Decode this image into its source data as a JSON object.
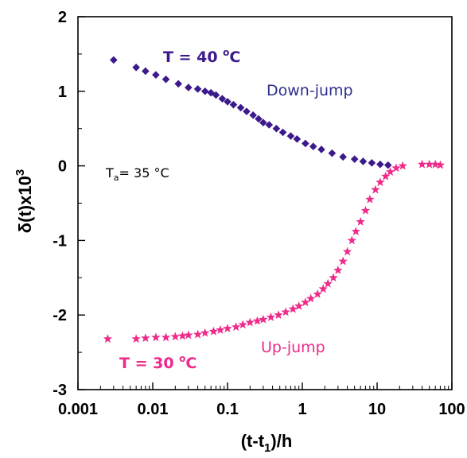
{
  "chart_data": {
    "type": "scatter",
    "x_scale": "log",
    "xlim": [
      0.001,
      100
    ],
    "ylim": [
      -3,
      2
    ],
    "x_ticks": [
      "0.001",
      "0.01",
      "0.1",
      "1",
      "10",
      "100"
    ],
    "y_ticks": [
      "2",
      "1",
      "0",
      "-1",
      "-2",
      "-3"
    ],
    "xlabel": {
      "main": "(t-t",
      "sub": "1",
      "tail": ")/h"
    },
    "ylabel": {
      "main": "δ(t)x10",
      "sup": "3"
    },
    "grid": false,
    "annotations": {
      "down_temp": {
        "main": "T = 40 ",
        "sup": "o",
        "tail": "C"
      },
      "down_label": "Down-jump",
      "up_temp": {
        "main": "T = 30 ",
        "sup": "o",
        "tail": "C"
      },
      "up_label": "Up-jump",
      "ta": {
        "main": "T",
        "sub": "a",
        "tail": "= 35 °C"
      }
    },
    "series": [
      {
        "marker": "diamond",
        "color": "#3d1a8c",
        "points": [
          [
            0.003,
            1.42
          ],
          [
            0.006,
            1.32
          ],
          [
            0.008,
            1.27
          ],
          [
            0.011,
            1.22
          ],
          [
            0.015,
            1.16
          ],
          [
            0.022,
            1.1
          ],
          [
            0.03,
            1.05
          ],
          [
            0.04,
            1.03
          ],
          [
            0.05,
            1.0
          ],
          [
            0.06,
            0.98
          ],
          [
            0.07,
            0.95
          ],
          [
            0.085,
            0.9
          ],
          [
            0.1,
            0.86
          ],
          [
            0.12,
            0.82
          ],
          [
            0.15,
            0.78
          ],
          [
            0.18,
            0.73
          ],
          [
            0.22,
            0.68
          ],
          [
            0.26,
            0.63
          ],
          [
            0.3,
            0.58
          ],
          [
            0.36,
            0.55
          ],
          [
            0.45,
            0.5
          ],
          [
            0.55,
            0.45
          ],
          [
            0.7,
            0.4
          ],
          [
            0.85,
            0.36
          ],
          [
            1.1,
            0.3
          ],
          [
            1.4,
            0.26
          ],
          [
            1.8,
            0.22
          ],
          [
            2.5,
            0.17
          ],
          [
            3.5,
            0.12
          ],
          [
            5,
            0.09
          ],
          [
            6.5,
            0.06
          ],
          [
            8.5,
            0.04
          ],
          [
            11,
            0.02
          ],
          [
            14,
            0.01
          ]
        ]
      },
      {
        "marker": "star",
        "color": "#ee2a8a",
        "points": [
          [
            0.0025,
            -2.32
          ],
          [
            0.006,
            -2.32
          ],
          [
            0.008,
            -2.31
          ],
          [
            0.011,
            -2.3
          ],
          [
            0.015,
            -2.3
          ],
          [
            0.02,
            -2.29
          ],
          [
            0.025,
            -2.28
          ],
          [
            0.03,
            -2.27
          ],
          [
            0.04,
            -2.26
          ],
          [
            0.05,
            -2.24
          ],
          [
            0.065,
            -2.22
          ],
          [
            0.08,
            -2.2
          ],
          [
            0.1,
            -2.18
          ],
          [
            0.13,
            -2.16
          ],
          [
            0.16,
            -2.13
          ],
          [
            0.2,
            -2.1
          ],
          [
            0.25,
            -2.08
          ],
          [
            0.3,
            -2.06
          ],
          [
            0.38,
            -2.03
          ],
          [
            0.48,
            -2.0
          ],
          [
            0.6,
            -1.96
          ],
          [
            0.75,
            -1.92
          ],
          [
            0.9,
            -1.88
          ],
          [
            1.1,
            -1.83
          ],
          [
            1.3,
            -1.78
          ],
          [
            1.6,
            -1.72
          ],
          [
            1.9,
            -1.65
          ],
          [
            2.2,
            -1.58
          ],
          [
            2.6,
            -1.5
          ],
          [
            3.0,
            -1.4
          ],
          [
            3.5,
            -1.28
          ],
          [
            4.0,
            -1.15
          ],
          [
            4.6,
            -1.0
          ],
          [
            5.2,
            -0.88
          ],
          [
            6.0,
            -0.75
          ],
          [
            7.0,
            -0.6
          ],
          [
            8.0,
            -0.45
          ],
          [
            9.5,
            -0.32
          ],
          [
            11,
            -0.22
          ],
          [
            13,
            -0.14
          ],
          [
            15,
            -0.08
          ],
          [
            18,
            -0.03
          ],
          [
            22,
            0.0
          ],
          [
            40,
            0.02
          ],
          [
            50,
            0.02
          ],
          [
            60,
            0.02
          ],
          [
            70,
            0.01
          ]
        ]
      }
    ]
  }
}
